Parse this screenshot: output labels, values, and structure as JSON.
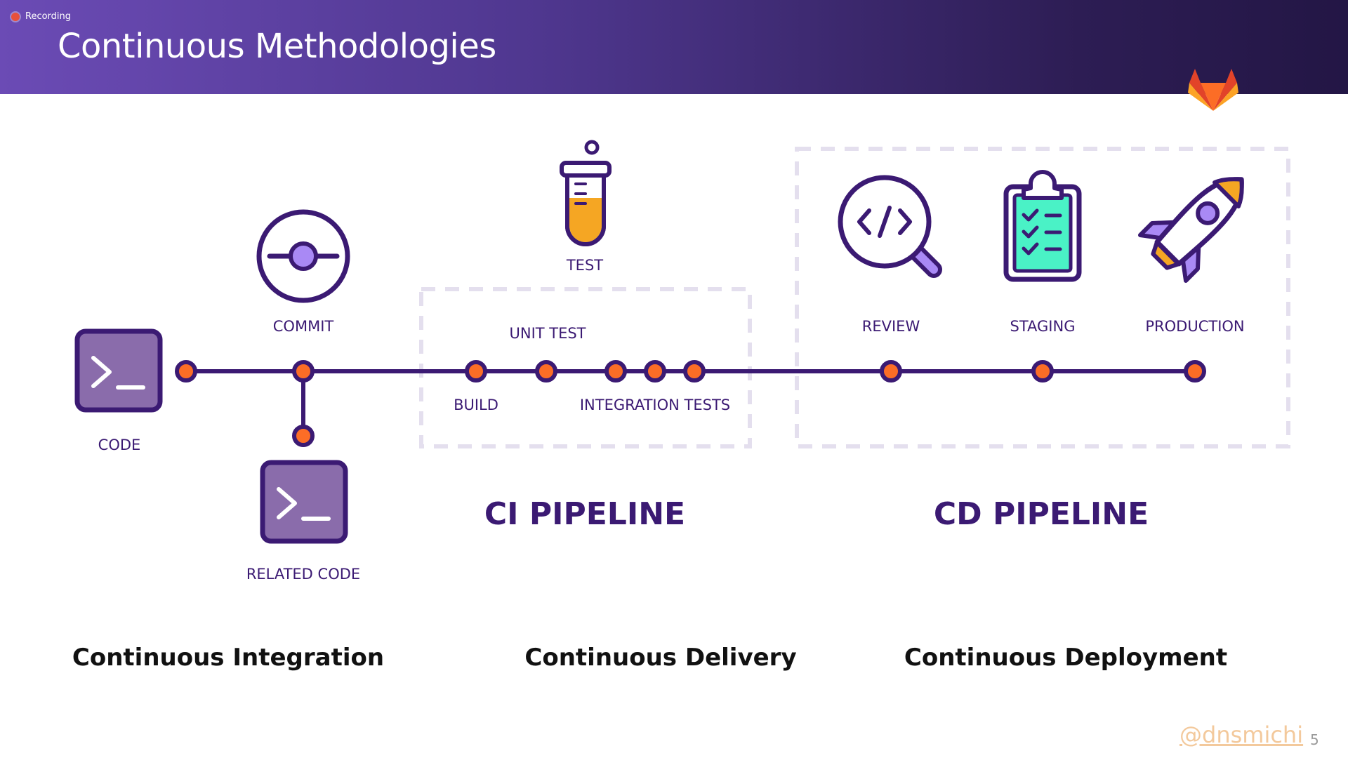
{
  "header": {
    "recording_label": "Recording",
    "title": "Continuous Methodologies"
  },
  "icons": {
    "logo": "gitlab-logo-icon",
    "code": "terminal-icon",
    "commit": "git-commit-icon",
    "test": "test-tube-icon",
    "review": "code-review-magnifier-icon",
    "staging": "clipboard-checklist-icon",
    "production": "rocket-icon"
  },
  "stages": {
    "code": "CODE",
    "commit": "COMMIT",
    "related_code": "RELATED CODE",
    "test": "TEST",
    "unit_test": "UNIT TEST",
    "build": "BUILD",
    "integration_tests": "INTEGRATION TESTS",
    "review": "REVIEW",
    "staging": "STAGING",
    "production": "PRODUCTION"
  },
  "pipelines": {
    "ci": "CI PIPELINE",
    "cd": "CD PIPELINE"
  },
  "sections": {
    "integration": "Continuous Integration",
    "delivery": "Continuous Delivery",
    "deployment": "Continuous Deployment"
  },
  "footer": {
    "handle": "@dnsmichi",
    "page": "5"
  },
  "colors": {
    "primary": "#3b1a73",
    "node": "#fc6d26",
    "icon_fill": "#8a6cab",
    "accent_purple": "#a989f5",
    "accent_orange": "#f5a623",
    "accent_green": "#4af2c6",
    "dashed_box": "#e4dfee"
  }
}
